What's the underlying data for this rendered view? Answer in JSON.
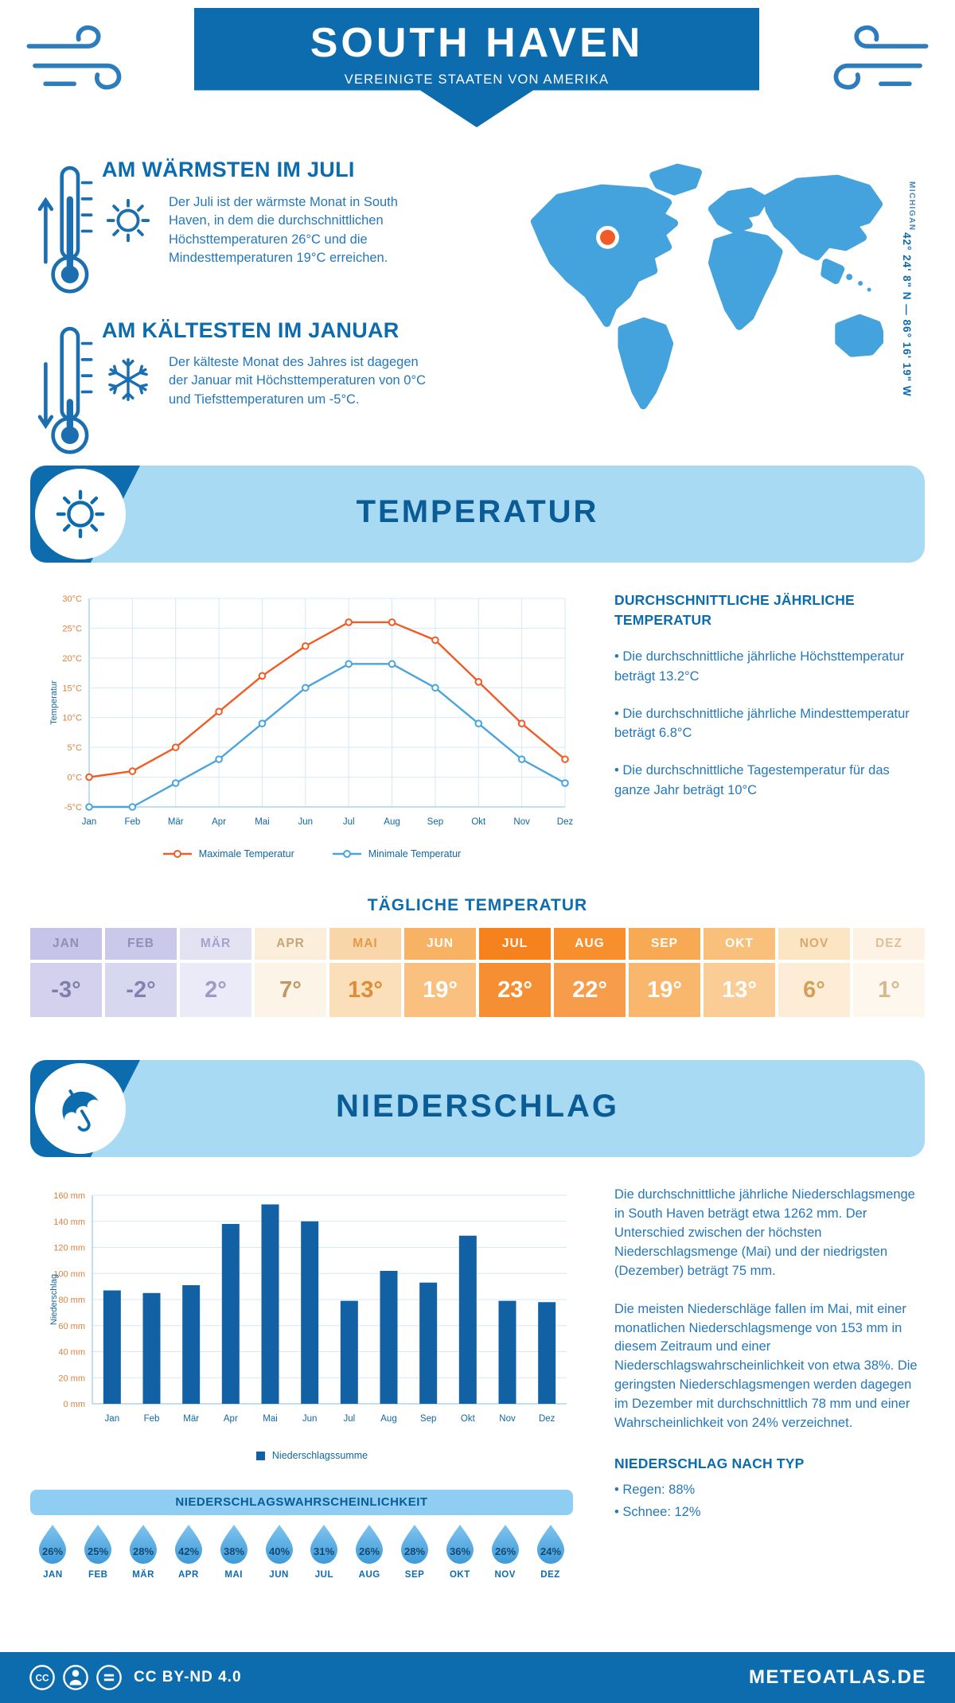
{
  "header": {
    "title": "SOUTH HAVEN",
    "subtitle": "VEREINIGTE STAATEN VON AMERIKA"
  },
  "location": {
    "region_label": "MICHIGAN",
    "coordinates": "42° 24' 8\" N — 86° 16' 19\" W"
  },
  "highlights": {
    "warmest": {
      "heading": "AM WÄRMSTEN IM JULI",
      "text": "Der Juli ist der wärmste Monat in South Haven, in dem die durchschnittlichen Höchsttemperaturen 26°C und die Mindesttemperaturen 19°C erreichen."
    },
    "coldest": {
      "heading": "AM KÄLTESTEN IM JANUAR",
      "text": "Der kälteste Monat des Jahres ist dagegen der Januar mit Höchsttemperaturen von 0°C und Tiefsttemperaturen um -5°C."
    }
  },
  "temperature": {
    "section_title": "TEMPERATUR",
    "annual_heading": "DURCHSCHNITTLICHE JÄHRLICHE TEMPERATUR",
    "annual_bullets": [
      "Die durchschnittliche jährliche Höchsttemperatur beträgt 13.2°C",
      "Die durchschnittliche jährliche Mindesttemperatur beträgt 6.8°C",
      "Die durchschnittliche Tagestemperatur für das ganze Jahr beträgt 10°C"
    ],
    "daily_heading": "TÄGLICHE TEMPERATUR",
    "daily": [
      {
        "month": "JAN",
        "value": "-3°",
        "header_bg": "#c6c4e8",
        "value_bg": "#d3d1ee",
        "header_color": "#8f8fb8",
        "value_color": "#7e7ea8"
      },
      {
        "month": "FEB",
        "value": "-2°",
        "header_bg": "#cbc9ea",
        "value_bg": "#d8d7f0",
        "header_color": "#8f8fb8",
        "value_color": "#8282b2"
      },
      {
        "month": "MÄR",
        "value": "2°",
        "header_bg": "#e3e2f3",
        "value_bg": "#ebeaf8",
        "header_color": "#a3a3cb",
        "value_color": "#9b9bc6"
      },
      {
        "month": "APR",
        "value": "7°",
        "header_bg": "#fbeedb",
        "value_bg": "#fdf4e8",
        "header_color": "#c8a47b",
        "value_color": "#c19768"
      },
      {
        "month": "MAI",
        "value": "13°",
        "header_bg": "#f9d6a9",
        "value_bg": "#fbdfbb",
        "header_color": "#e29a48",
        "value_color": "#dd8d35"
      },
      {
        "month": "JUN",
        "value": "19°",
        "header_bg": "#f7b264",
        "value_bg": "#f9c07f",
        "header_color": "#ffffff",
        "value_color": "#ffffff"
      },
      {
        "month": "JUL",
        "value": "23°",
        "header_bg": "#f5821c",
        "value_bg": "#f68e33",
        "header_color": "#ffffff",
        "value_color": "#ffffff"
      },
      {
        "month": "AUG",
        "value": "22°",
        "header_bg": "#f68f2c",
        "value_bg": "#f79c4a",
        "header_color": "#ffffff",
        "value_color": "#ffffff"
      },
      {
        "month": "SEP",
        "value": "19°",
        "header_bg": "#f8a953",
        "value_bg": "#f9b66d",
        "header_color": "#ffffff",
        "value_color": "#ffffff"
      },
      {
        "month": "OKT",
        "value": "13°",
        "header_bg": "#f9c07c",
        "value_bg": "#fbcd96",
        "header_color": "#ffffff",
        "value_color": "#ffffff"
      },
      {
        "month": "NOV",
        "value": "6°",
        "header_bg": "#fce5c2",
        "value_bg": "#fdedd6",
        "header_color": "#d8a96b",
        "value_color": "#d2a05a"
      },
      {
        "month": "DEZ",
        "value": "1°",
        "header_bg": "#fdf2e3",
        "value_bg": "#fef7ed",
        "header_color": "#dcc09a",
        "value_color": "#d7b88d"
      }
    ]
  },
  "precipitation": {
    "section_title": "NIEDERSCHLAG",
    "paragraphs": [
      "Die durchschnittliche jährliche Niederschlagsmenge in South Haven beträgt etwa 1262 mm. Der Unterschied zwischen der höchsten Niederschlagsmenge (Mai) und der niedrigsten (Dezember) beträgt 75 mm.",
      "Die meisten Niederschläge fallen im Mai, mit einer monatlichen Niederschlagsmenge von 153 mm in diesem Zeitraum und einer Niederschlagswahrscheinlichkeit von etwa 38%. Die geringsten Niederschlagsmengen werden dagegen im Dezember mit durchschnittlich 78 mm und einer Wahrscheinlichkeit von 24% verzeichnet."
    ],
    "type_heading": "NIEDERSCHLAG NACH TYP",
    "type_bullets": [
      "Regen: 88%",
      "Schnee: 12%"
    ],
    "probability_heading": "NIEDERSCHLAGSWAHRSCHEINLICHKEIT",
    "probability": [
      {
        "month": "JAN",
        "value": "26%"
      },
      {
        "month": "FEB",
        "value": "25%"
      },
      {
        "month": "MÄR",
        "value": "28%"
      },
      {
        "month": "APR",
        "value": "42%"
      },
      {
        "month": "MAI",
        "value": "38%"
      },
      {
        "month": "JUN",
        "value": "40%"
      },
      {
        "month": "JUL",
        "value": "31%"
      },
      {
        "month": "AUG",
        "value": "26%"
      },
      {
        "month": "SEP",
        "value": "28%"
      },
      {
        "month": "OKT",
        "value": "36%"
      },
      {
        "month": "NOV",
        "value": "26%"
      },
      {
        "month": "DEZ",
        "value": "24%"
      }
    ]
  },
  "chart_data": [
    {
      "type": "line",
      "x": [
        "Jan",
        "Feb",
        "Mär",
        "Apr",
        "Mai",
        "Jun",
        "Jul",
        "Aug",
        "Sep",
        "Okt",
        "Nov",
        "Dez"
      ],
      "series": [
        {
          "name": "Maximale Temperatur",
          "color": "#f15b25",
          "values": [
            0,
            1,
            5,
            11,
            17,
            22,
            26,
            26,
            23,
            16,
            9,
            3
          ]
        },
        {
          "name": "Minimale Temperatur",
          "color": "#4aa4de",
          "values": [
            -5,
            -5,
            -1,
            3,
            9,
            15,
            19,
            19,
            15,
            9,
            3,
            -1
          ]
        }
      ],
      "ylabel": "Temperatur",
      "ylim": [
        -5,
        30
      ],
      "ystep": 5,
      "ytick_suffix": "°C",
      "grid": true,
      "legend_position": "bottom"
    },
    {
      "type": "bar",
      "categories": [
        "Jan",
        "Feb",
        "Mär",
        "Apr",
        "Mai",
        "Jun",
        "Jul",
        "Aug",
        "Sep",
        "Okt",
        "Nov",
        "Dez"
      ],
      "values": [
        87,
        85,
        91,
        138,
        153,
        140,
        79,
        102,
        93,
        129,
        79,
        78
      ],
      "legend": [
        "Niederschlagssumme"
      ],
      "ylabel": "Niederschlag",
      "ylim": [
        0,
        160
      ],
      "ystep": 20,
      "ytick_suffix": " mm",
      "color": "#1261a5",
      "grid": true,
      "legend_position": "bottom"
    }
  ],
  "footer": {
    "license": "CC BY-ND 4.0",
    "site": "METEOATLAS.DE"
  },
  "colors": {
    "primary_blue": "#0d6cae",
    "light_blue_banner": "#a9daf4",
    "accent_orange": "#f15b25",
    "map_blue": "#44a2dd",
    "bar_blue": "#1261a5",
    "body_text_blue": "#2478b9"
  }
}
